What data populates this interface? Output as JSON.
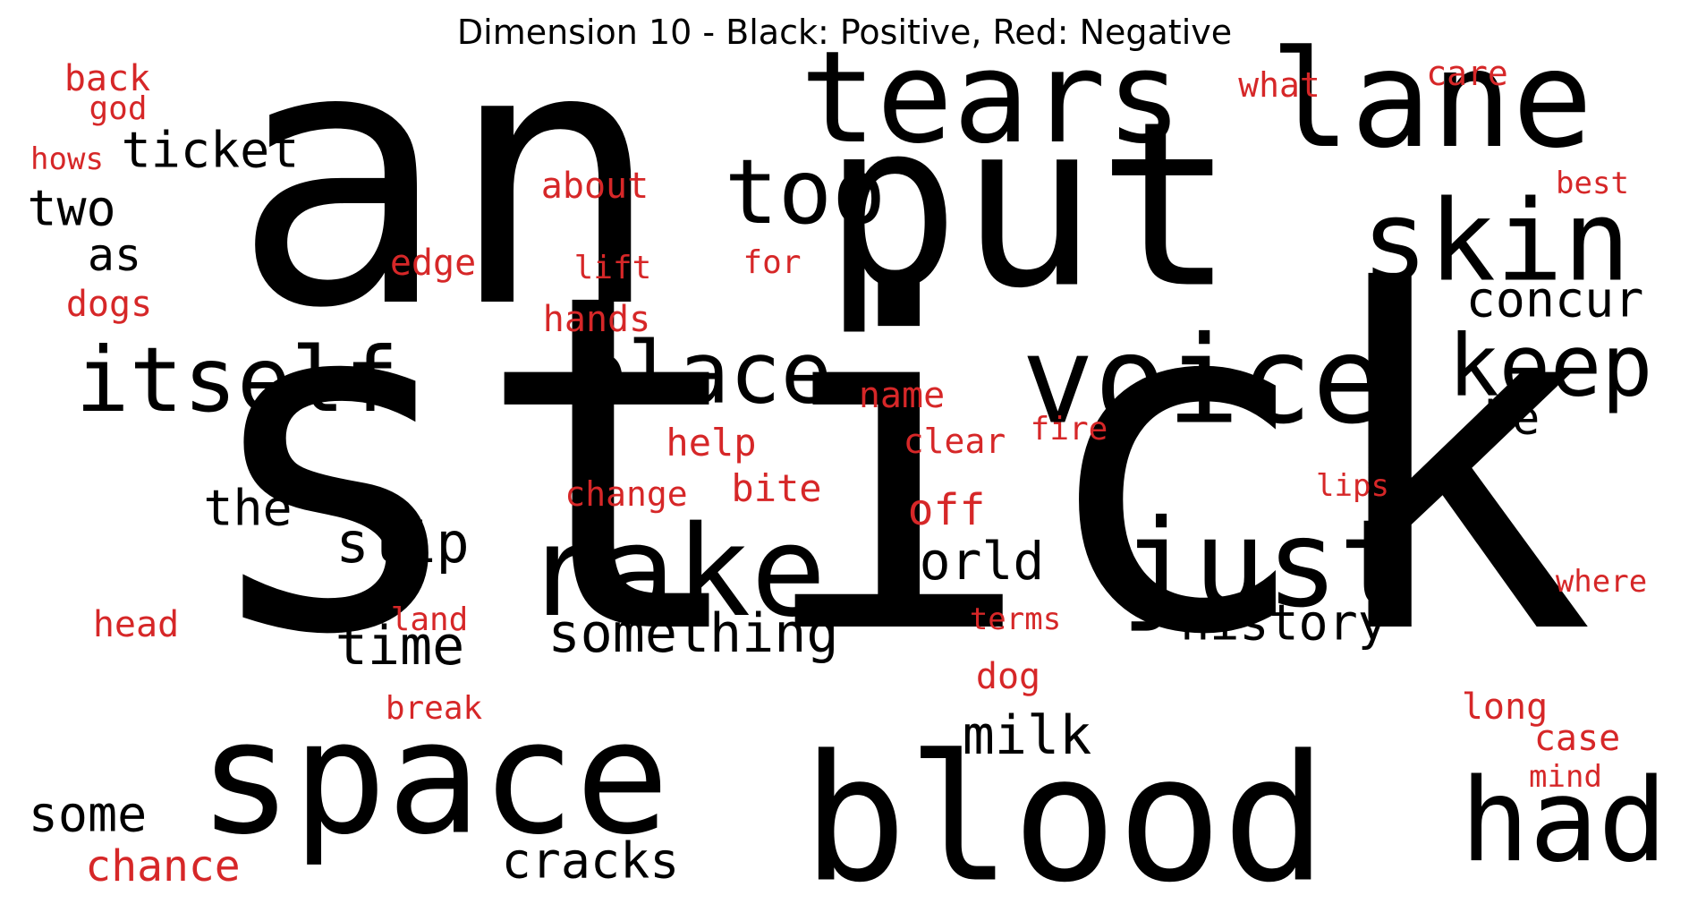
{
  "title": "Dimension 10 - Black: Positive, Red: Negative",
  "colors": {
    "positive": "#000000",
    "negative": "#d62728"
  },
  "words": [
    {
      "text": "an",
      "polarity": "positive"
    },
    {
      "text": "stick",
      "polarity": "positive"
    },
    {
      "text": "put",
      "polarity": "positive"
    },
    {
      "text": "tears",
      "polarity": "positive"
    },
    {
      "text": "lane",
      "polarity": "positive"
    },
    {
      "text": "skin",
      "polarity": "positive"
    },
    {
      "text": "voice",
      "polarity": "positive"
    },
    {
      "text": "keep",
      "polarity": "positive"
    },
    {
      "text": "concur",
      "polarity": "positive"
    },
    {
      "text": "be",
      "polarity": "positive"
    },
    {
      "text": "too",
      "polarity": "positive"
    },
    {
      "text": "place",
      "polarity": "positive"
    },
    {
      "text": "itself",
      "polarity": "positive"
    },
    {
      "text": "ticket",
      "polarity": "positive"
    },
    {
      "text": "two",
      "polarity": "positive"
    },
    {
      "text": "as",
      "polarity": "positive"
    },
    {
      "text": "the",
      "polarity": "positive"
    },
    {
      "text": "slip",
      "polarity": "positive"
    },
    {
      "text": "rake",
      "polarity": "positive"
    },
    {
      "text": "just",
      "polarity": "positive"
    },
    {
      "text": "history",
      "polarity": "positive"
    },
    {
      "text": "world",
      "polarity": "positive"
    },
    {
      "text": "something",
      "polarity": "positive"
    },
    {
      "text": "time",
      "polarity": "positive"
    },
    {
      "text": "space",
      "polarity": "positive"
    },
    {
      "text": "blood",
      "polarity": "positive"
    },
    {
      "text": "had",
      "polarity": "positive"
    },
    {
      "text": "milk",
      "polarity": "positive"
    },
    {
      "text": "some",
      "polarity": "positive"
    },
    {
      "text": "cracks",
      "polarity": "positive"
    },
    {
      "text": "back",
      "polarity": "negative"
    },
    {
      "text": "god",
      "polarity": "negative"
    },
    {
      "text": "hows",
      "polarity": "negative"
    },
    {
      "text": "dogs",
      "polarity": "negative"
    },
    {
      "text": "edge",
      "polarity": "negative"
    },
    {
      "text": "about",
      "polarity": "negative"
    },
    {
      "text": "lift",
      "polarity": "negative"
    },
    {
      "text": "for",
      "polarity": "negative"
    },
    {
      "text": "hands",
      "polarity": "negative"
    },
    {
      "text": "what",
      "polarity": "negative"
    },
    {
      "text": "care",
      "polarity": "negative"
    },
    {
      "text": "best",
      "polarity": "negative"
    },
    {
      "text": "name",
      "polarity": "negative"
    },
    {
      "text": "help",
      "polarity": "negative"
    },
    {
      "text": "clear",
      "polarity": "negative"
    },
    {
      "text": "fire",
      "polarity": "negative"
    },
    {
      "text": "change",
      "polarity": "negative"
    },
    {
      "text": "bite",
      "polarity": "negative"
    },
    {
      "text": "off",
      "polarity": "negative"
    },
    {
      "text": "lips",
      "polarity": "negative"
    },
    {
      "text": "where",
      "polarity": "negative"
    },
    {
      "text": "head",
      "polarity": "negative"
    },
    {
      "text": "land",
      "polarity": "negative"
    },
    {
      "text": "terms",
      "polarity": "negative"
    },
    {
      "text": "dog",
      "polarity": "negative"
    },
    {
      "text": "break",
      "polarity": "negative"
    },
    {
      "text": "long",
      "polarity": "negative"
    },
    {
      "text": "case",
      "polarity": "negative"
    },
    {
      "text": "mind",
      "polarity": "negative"
    },
    {
      "text": "chance",
      "polarity": "negative"
    }
  ]
}
